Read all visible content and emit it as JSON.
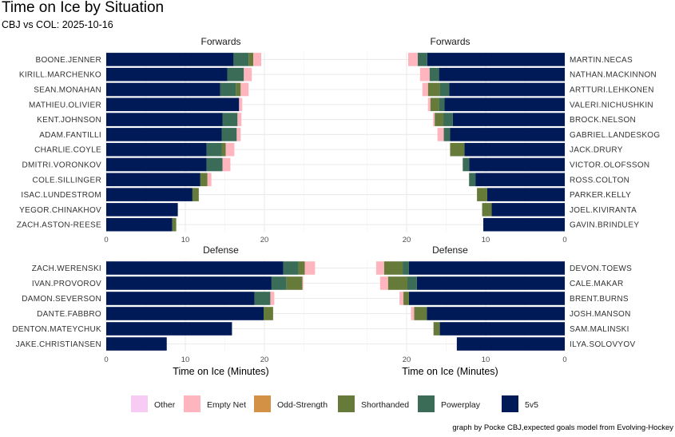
{
  "chart_data": {
    "type": "bar",
    "orientation": "horizontal-stacked",
    "title": "Time on Ice by Situation",
    "subtitle": "CBJ vs COL: 2025-10-16",
    "xlabel": "Time on Ice (Minutes)",
    "xlim": [
      0,
      29
    ],
    "ticks": [
      "0",
      "10",
      "20"
    ],
    "caption": "graph by Pocke CBJ,expected goals model from Evolving-Hockey",
    "situations": [
      "Other",
      "Empty Net",
      "Odd-Strength",
      "Shorthanded",
      "Powerplay",
      "5v5"
    ],
    "colors": {
      "Other": "#F8CBF5",
      "Empty Net": "#FFB5BD",
      "Odd-Strength": "#D29144",
      "Shorthanded": "#667A3A",
      "Powerplay": "#3A6C57",
      "5v5": "#001A57"
    },
    "stack_order": [
      "5v5",
      "Powerplay",
      "Shorthanded",
      "Odd-Strength",
      "Empty Net",
      "Other"
    ],
    "panels": [
      {
        "id": "cbj-forwards",
        "title": "Forwards",
        "side": "left",
        "players": [
          {
            "name": "BOONE.JENNER",
            "5v5": 16.1,
            "Powerplay": 1.9,
            "Shorthanded": 0.6,
            "Empty Net": 1.0
          },
          {
            "name": "KIRILL.MARCHENKO",
            "5v5": 15.3,
            "Powerplay": 2.1,
            "Empty Net": 1.0
          },
          {
            "name": "SEAN.MONAHAN",
            "5v5": 14.4,
            "Powerplay": 2.0,
            "Shorthanded": 0.6,
            "Empty Net": 1.0
          },
          {
            "name": "MATHIEU.OLIVIER",
            "5v5": 16.8,
            "Empty Net": 0.4
          },
          {
            "name": "KENT.JOHNSON",
            "5v5": 14.7,
            "Powerplay": 1.9,
            "Empty Net": 0.5
          },
          {
            "name": "ADAM.FANTILLI",
            "5v5": 14.6,
            "Powerplay": 1.9,
            "Empty Net": 0.5
          },
          {
            "name": "CHARLIE.COYLE",
            "5v5": 12.7,
            "Powerplay": 1.9,
            "Shorthanded": 0.5,
            "Empty Net": 1.1
          },
          {
            "name": "DMITRI.VORONKOV",
            "5v5": 12.7,
            "Powerplay": 2.0,
            "Empty Net": 1.0
          },
          {
            "name": "COLE.SILLINGER",
            "5v5": 11.9,
            "Shorthanded": 0.9,
            "Empty Net": 0.5
          },
          {
            "name": "ISAC.LUNDESTROM",
            "5v5": 10.9,
            "Shorthanded": 0.8
          },
          {
            "name": "YEGOR.CHINAKHOV",
            "5v5": 9.05
          },
          {
            "name": "ZACH.ASTON-REESE",
            "5v5": 8.35,
            "Shorthanded": 0.5
          }
        ]
      },
      {
        "id": "col-forwards",
        "title": "Forwards",
        "side": "right",
        "players": [
          {
            "name": "MARTIN.NECAS",
            "5v5": 17.4,
            "Powerplay": 1.2,
            "Empty Net": 1.2
          },
          {
            "name": "NATHAN.MACKINNON",
            "5v5": 15.9,
            "Powerplay": 1.2,
            "Empty Net": 1.2
          },
          {
            "name": "ARTTURI.LEHKONEN",
            "5v5": 14.6,
            "Powerplay": 1.2,
            "Shorthanded": 1.5,
            "Empty Net": 0.7
          },
          {
            "name": "VALERI.NICHUSHKIN",
            "5v5": 15.2,
            "Powerplay": 0.7,
            "Shorthanded": 1.1,
            "Empty Net": 0.3
          },
          {
            "name": "BROCK.NELSON",
            "5v5": 14.15,
            "Powerplay": 1.2,
            "Shorthanded": 1.1,
            "Empty Net": 0.2
          },
          {
            "name": "GABRIEL.LANDESKOG",
            "5v5": 14.5,
            "Powerplay": 0.8,
            "Empty Net": 0.8
          },
          {
            "name": "JACK.DRURY",
            "5v5": 12.7,
            "Shorthanded": 1.8
          },
          {
            "name": "VICTOR.OLOFSSON",
            "5v5": 12.1,
            "Powerplay": 0.8
          },
          {
            "name": "ROSS.COLTON",
            "5v5": 11.3,
            "Powerplay": 0.8
          },
          {
            "name": "PARKER.KELLY",
            "5v5": 9.8,
            "Shorthanded": 1.3
          },
          {
            "name": "JOEL.KIVIRANTA",
            "5v5": 9.25,
            "Shorthanded": 1.2
          },
          {
            "name": "GAVIN.BRINDLEY",
            "5v5": 10.3
          }
        ]
      },
      {
        "id": "cbj-defense",
        "title": "Defense",
        "side": "left",
        "players": [
          {
            "name": "ZACH.WERENSKI",
            "5v5": 22.4,
            "Powerplay": 1.9,
            "Shorthanded": 0.8,
            "Empty Net": 1.3
          },
          {
            "name": "IVAN.PROVOROV",
            "5v5": 20.9,
            "Powerplay": 1.9,
            "Shorthanded": 2.0,
            "Empty Net": 0.1
          },
          {
            "name": "DAMON.SEVERSON",
            "5v5": 18.75,
            "Powerplay": 2.0,
            "Empty Net": 0.5
          },
          {
            "name": "DANTE.FABBRO",
            "5v5": 19.9,
            "Shorthanded": 1.2
          },
          {
            "name": "DENTON.MATEYCHUK",
            "5v5": 15.9
          },
          {
            "name": "JAKE.CHRISTIANSEN",
            "5v5": 7.65
          }
        ]
      },
      {
        "id": "col-defense",
        "title": "Defense",
        "side": "right",
        "players": [
          {
            "name": "DEVON.TOEWS",
            "5v5": 19.7,
            "Powerplay": 0.8,
            "Shorthanded": 2.35,
            "Empty Net": 1.0
          },
          {
            "name": "CALE.MAKAR",
            "5v5": 18.7,
            "Powerplay": 1.2,
            "Shorthanded": 2.45,
            "Empty Net": 1.0
          },
          {
            "name": "BRENT.BURNS",
            "5v5": 19.7,
            "Shorthanded": 0.7,
            "Empty Net": 0.5
          },
          {
            "name": "JOSH.MANSON",
            "5v5": 17.45,
            "Shorthanded": 1.6,
            "Empty Net": 0.4
          },
          {
            "name": "SAM.MALINSKI",
            "5v5": 15.8,
            "Shorthanded": 0.8
          },
          {
            "name": "ILYA.SOLOVYOV",
            "5v5": 13.65
          }
        ]
      }
    ]
  }
}
